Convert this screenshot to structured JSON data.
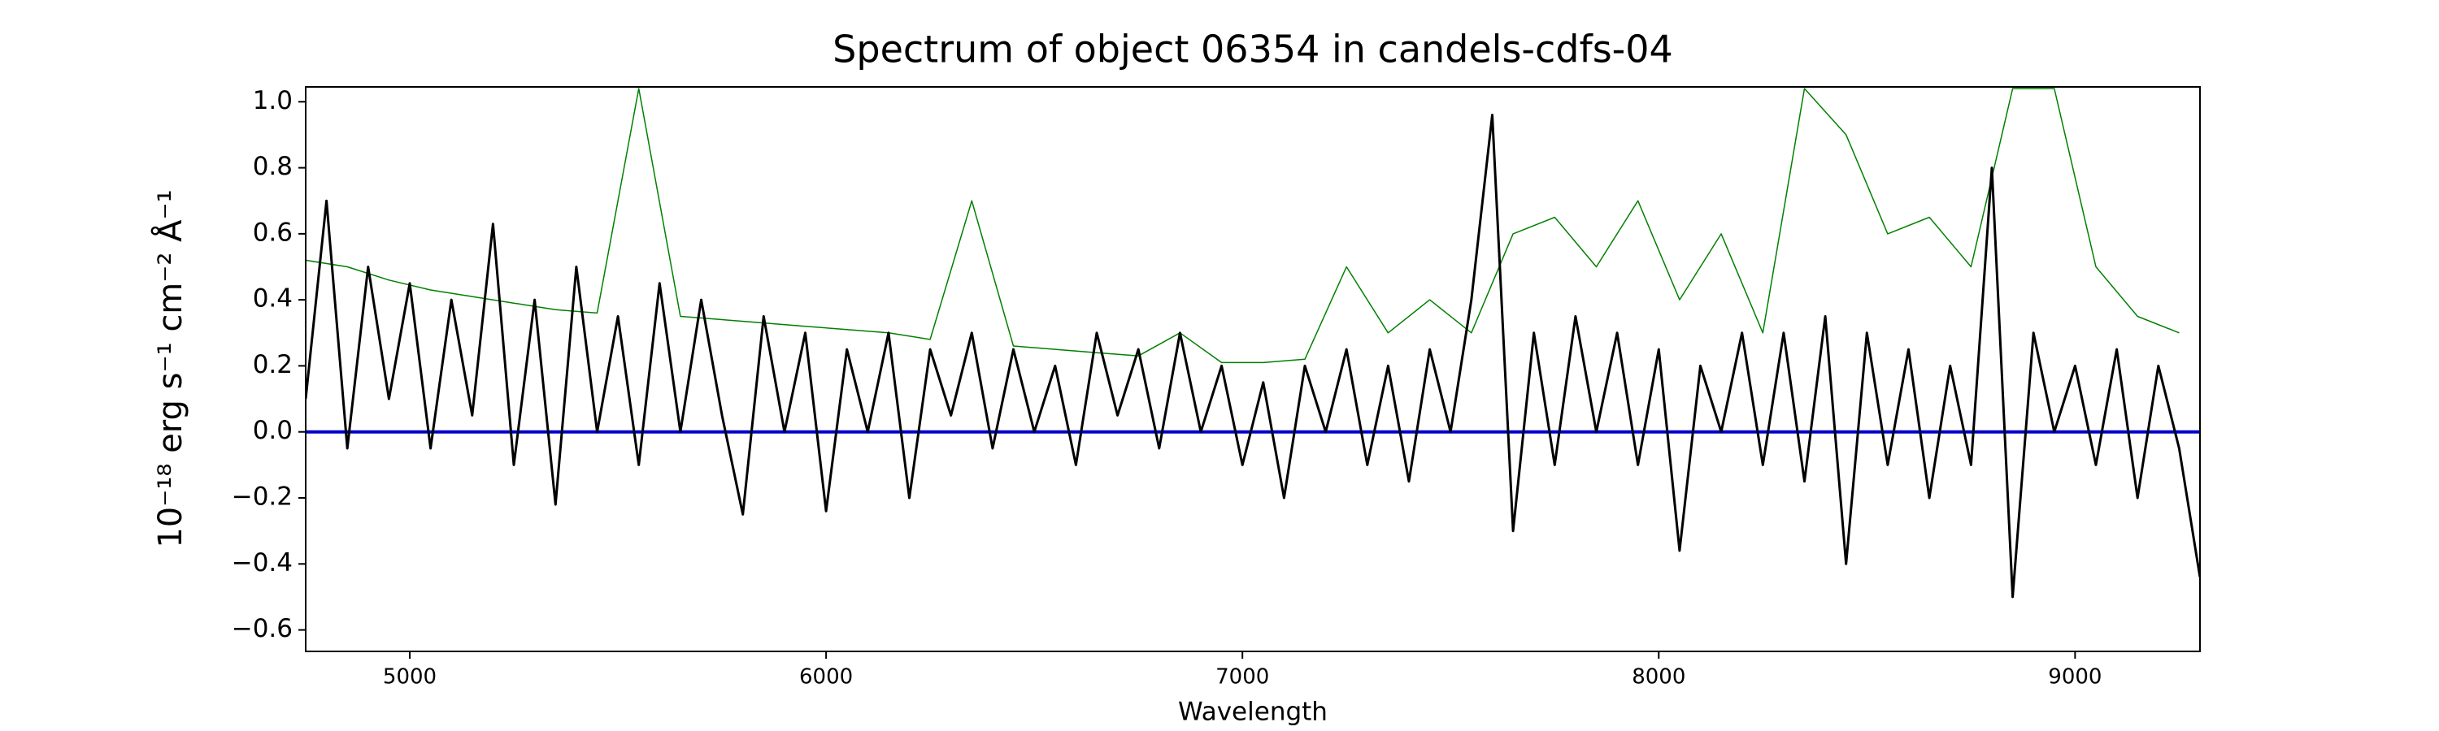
{
  "chart_data": {
    "type": "line",
    "title": "Spectrum of object 06354 in candels-cdfs-04",
    "x_label": "Wavelength",
    "y_label": "10⁻¹⁸ erg s⁻¹ cm⁻² Å⁻¹",
    "xlim": [
      4750,
      9300
    ],
    "ylim": [
      -0.665,
      1.045
    ],
    "xticks": [
      5000,
      6000,
      7000,
      8000,
      9000
    ],
    "yticks": [
      {
        "value": -0.6,
        "label": "−0.6"
      },
      {
        "value": -0.4,
        "label": "−0.4"
      },
      {
        "value": -0.2,
        "label": "−0.2"
      },
      {
        "value": 0,
        "label": "0.0"
      },
      0.2,
      0.4,
      0.6,
      0.8,
      {
        "value": 1,
        "label": "1.0"
      }
    ],
    "grid": false,
    "series": [
      {
        "color": "#008000",
        "width": 1.5,
        "x": [
          4750,
          4850,
          4950,
          5050,
          5150,
          5250,
          5350,
          5450,
          5550,
          5650,
          5750,
          5850,
          5950,
          6050,
          6150,
          6250,
          6350,
          6450,
          6550,
          6650,
          6750,
          6850,
          6950,
          7050,
          7150,
          7250,
          7350,
          7450,
          7550,
          7650,
          7750,
          7850,
          7950,
          8050,
          8150,
          8250,
          8350,
          8450,
          8550,
          8650,
          8750,
          8850,
          8950,
          9050,
          9150,
          9250
        ],
        "values": [
          0.52,
          0.5,
          0.46,
          0.43,
          0.41,
          0.39,
          0.37,
          0.36,
          1.04,
          0.35,
          0.34,
          0.33,
          0.32,
          0.31,
          0.3,
          0.28,
          0.7,
          0.26,
          0.25,
          0.24,
          0.23,
          0.3,
          0.21,
          0.21,
          0.22,
          0.5,
          0.3,
          0.4,
          0.3,
          0.6,
          0.65,
          0.5,
          0.7,
          0.4,
          0.6,
          0.3,
          1.04,
          0.9,
          0.6,
          0.65,
          0.5,
          1.04,
          1.04,
          0.5,
          0.35,
          0.3
        ]
      },
      {
        "color": "#0000cc",
        "width": 4,
        "x": [
          4750,
          9300
        ],
        "values": [
          0,
          0
        ]
      },
      {
        "color": "#000000",
        "width": 3,
        "x": [
          4750,
          4800,
          4850,
          4900,
          4950,
          5000,
          5050,
          5100,
          5150,
          5200,
          5250,
          5300,
          5350,
          5400,
          5450,
          5500,
          5550,
          5600,
          5650,
          5700,
          5750,
          5800,
          5850,
          5900,
          5950,
          6000,
          6050,
          6100,
          6150,
          6200,
          6250,
          6300,
          6350,
          6400,
          6450,
          6500,
          6550,
          6600,
          6650,
          6700,
          6750,
          6800,
          6850,
          6900,
          6950,
          7000,
          7050,
          7100,
          7150,
          7200,
          7250,
          7300,
          7350,
          7400,
          7450,
          7500,
          7550,
          7600,
          7650,
          7700,
          7750,
          7800,
          7850,
          7900,
          7950,
          8000,
          8050,
          8100,
          8150,
          8200,
          8250,
          8300,
          8350,
          8400,
          8450,
          8500,
          8550,
          8600,
          8650,
          8700,
          8750,
          8800,
          8850,
          8900,
          8950,
          9000,
          9050,
          9100,
          9150,
          9200,
          9250,
          9300
        ],
        "values": [
          0.1,
          0.7,
          -0.05,
          0.5,
          0.1,
          0.45,
          -0.05,
          0.4,
          0.05,
          0.63,
          -0.1,
          0.4,
          -0.22,
          0.5,
          0.0,
          0.35,
          -0.1,
          0.45,
          0.0,
          0.4,
          0.05,
          -0.25,
          0.35,
          0.0,
          0.3,
          -0.24,
          0.25,
          0.0,
          0.3,
          -0.2,
          0.25,
          0.05,
          0.3,
          -0.05,
          0.25,
          0.0,
          0.2,
          -0.1,
          0.3,
          0.05,
          0.25,
          -0.05,
          0.3,
          0.0,
          0.2,
          -0.1,
          0.15,
          -0.2,
          0.2,
          0.0,
          0.25,
          -0.1,
          0.2,
          -0.15,
          0.25,
          0.0,
          0.4,
          0.96,
          -0.3,
          0.3,
          -0.1,
          0.35,
          0.0,
          0.3,
          -0.1,
          0.25,
          -0.36,
          0.2,
          0.0,
          0.3,
          -0.1,
          0.3,
          -0.15,
          0.35,
          -0.4,
          0.3,
          -0.1,
          0.25,
          -0.2,
          0.2,
          -0.1,
          0.8,
          -0.5,
          0.3,
          0.0,
          0.2,
          -0.1,
          0.25,
          -0.2,
          0.2,
          -0.05,
          -0.44
        ]
      }
    ]
  }
}
